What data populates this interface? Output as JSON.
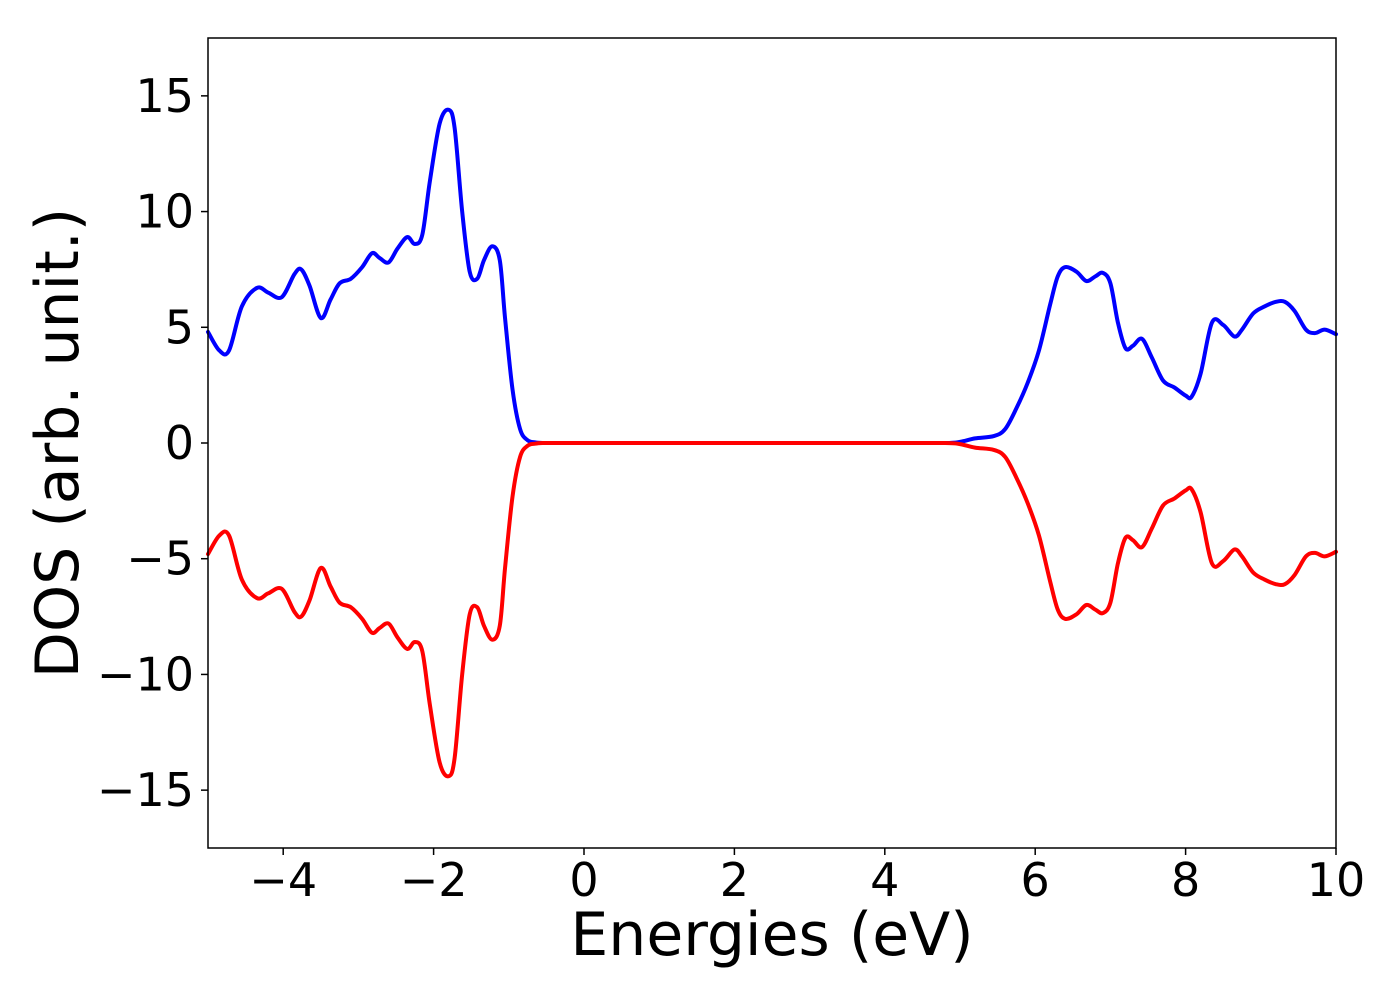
{
  "chart_data": {
    "type": "line",
    "title": "",
    "xlabel": "Energies (eV)",
    "ylabel": "DOS (arb. unit.)",
    "xlim": [
      -5,
      10
    ],
    "ylim": [
      -17.5,
      17.5
    ],
    "xticks": [
      -4,
      -2,
      0,
      2,
      4,
      6,
      8,
      10
    ],
    "xtick_labels": [
      "−4",
      "−2",
      "0",
      "2",
      "4",
      "6",
      "8",
      "10"
    ],
    "yticks": [
      -15,
      -10,
      -5,
      0,
      5,
      10,
      15
    ],
    "ytick_labels": [
      "−15",
      "−10",
      "−5",
      "0",
      "5",
      "10",
      "15"
    ],
    "grid": false,
    "legend": "none",
    "series": [
      {
        "color": "#0000ff",
        "x": [
          -5.0,
          -4.85,
          -4.72,
          -4.55,
          -4.35,
          -4.2,
          -4.02,
          -3.85,
          -3.76,
          -3.65,
          -3.5,
          -3.37,
          -3.25,
          -3.1,
          -2.95,
          -2.82,
          -2.72,
          -2.6,
          -2.48,
          -2.35,
          -2.25,
          -2.15,
          -2.05,
          -1.92,
          -1.8,
          -1.72,
          -1.62,
          -1.52,
          -1.42,
          -1.33,
          -1.22,
          -1.12,
          -1.05,
          -0.95,
          -0.85,
          -0.75,
          -0.65,
          -0.55,
          -0.45,
          0.0,
          2.0,
          4.0,
          4.8,
          5.0,
          5.2,
          5.45,
          5.6,
          5.75,
          5.9,
          6.05,
          6.2,
          6.3,
          6.4,
          6.55,
          6.68,
          6.8,
          6.9,
          7.0,
          7.1,
          7.2,
          7.3,
          7.42,
          7.55,
          7.7,
          7.85,
          8.0,
          8.08,
          8.2,
          8.35,
          8.5,
          8.65,
          8.75,
          8.9,
          9.05,
          9.2,
          9.32,
          9.45,
          9.6,
          9.72,
          9.85,
          10.0
        ],
        "y": [
          4.8,
          4.0,
          4.0,
          5.9,
          6.7,
          6.5,
          6.3,
          7.3,
          7.5,
          6.8,
          5.4,
          6.2,
          6.9,
          7.1,
          7.6,
          8.2,
          8.0,
          7.8,
          8.4,
          8.9,
          8.6,
          9.0,
          11.3,
          13.8,
          14.4,
          13.6,
          10.0,
          7.4,
          7.1,
          7.9,
          8.5,
          7.9,
          5.4,
          2.3,
          0.6,
          0.12,
          0.03,
          0.0,
          0.0,
          0.0,
          0.0,
          0.0,
          0.0,
          0.05,
          0.2,
          0.3,
          0.6,
          1.5,
          2.6,
          4.0,
          6.0,
          7.2,
          7.6,
          7.4,
          7.0,
          7.2,
          7.35,
          6.9,
          5.2,
          4.1,
          4.2,
          4.5,
          3.7,
          2.7,
          2.4,
          2.05,
          2.0,
          3.0,
          5.2,
          5.1,
          4.6,
          4.9,
          5.6,
          5.9,
          6.1,
          6.1,
          5.7,
          4.9,
          4.75,
          4.9,
          4.7
        ]
      },
      {
        "color": "#ff0000",
        "x": [
          -5.0,
          -4.85,
          -4.72,
          -4.55,
          -4.35,
          -4.2,
          -4.02,
          -3.85,
          -3.76,
          -3.65,
          -3.5,
          -3.37,
          -3.25,
          -3.1,
          -2.95,
          -2.82,
          -2.72,
          -2.6,
          -2.48,
          -2.35,
          -2.25,
          -2.15,
          -2.05,
          -1.92,
          -1.8,
          -1.72,
          -1.62,
          -1.52,
          -1.42,
          -1.33,
          -1.22,
          -1.12,
          -1.05,
          -0.95,
          -0.85,
          -0.75,
          -0.65,
          -0.55,
          -0.45,
          0.0,
          2.0,
          4.0,
          4.8,
          5.0,
          5.2,
          5.45,
          5.6,
          5.75,
          5.9,
          6.05,
          6.2,
          6.3,
          6.4,
          6.55,
          6.68,
          6.8,
          6.9,
          7.0,
          7.1,
          7.2,
          7.3,
          7.42,
          7.55,
          7.7,
          7.85,
          8.0,
          8.08,
          8.2,
          8.35,
          8.5,
          8.65,
          8.75,
          8.9,
          9.05,
          9.2,
          9.32,
          9.45,
          9.6,
          9.72,
          9.85,
          10.0
        ],
        "y": [
          -4.8,
          -4.0,
          -4.0,
          -5.9,
          -6.7,
          -6.5,
          -6.3,
          -7.3,
          -7.5,
          -6.8,
          -5.4,
          -6.2,
          -6.9,
          -7.1,
          -7.6,
          -8.2,
          -8.0,
          -7.8,
          -8.4,
          -8.9,
          -8.6,
          -9.0,
          -11.3,
          -13.8,
          -14.4,
          -13.6,
          -10.0,
          -7.4,
          -7.1,
          -7.9,
          -8.5,
          -7.9,
          -5.4,
          -2.3,
          -0.6,
          -0.12,
          -0.03,
          0.0,
          0.0,
          0.0,
          0.0,
          0.0,
          0.0,
          -0.05,
          -0.2,
          -0.3,
          -0.6,
          -1.5,
          -2.6,
          -4.0,
          -6.0,
          -7.2,
          -7.6,
          -7.4,
          -7.0,
          -7.2,
          -7.35,
          -6.9,
          -5.2,
          -4.1,
          -4.2,
          -4.5,
          -3.7,
          -2.7,
          -2.4,
          -2.05,
          -2.0,
          -3.0,
          -5.2,
          -5.1,
          -4.6,
          -4.9,
          -5.6,
          -5.9,
          -6.1,
          -6.1,
          -5.7,
          -4.9,
          -4.75,
          -4.9,
          -4.7
        ]
      }
    ]
  }
}
